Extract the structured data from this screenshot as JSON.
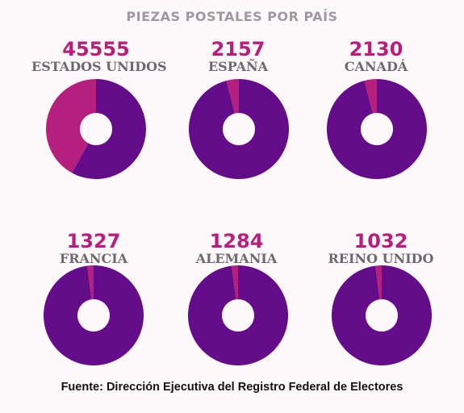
{
  "title": "PIEZAS POSTALES POR PAÍS",
  "source": "Fuente: Dirección Ejecutiva del Registro Federal de Electores",
  "colors": {
    "background": "#fdf9fa",
    "slice_main": "#650c8a",
    "slice_share": "#b51f7d",
    "number": "#b81f7d",
    "label": "#6c6a70"
  },
  "items": [
    {
      "value": "45555",
      "country": "ESTADOS UNIDOS"
    },
    {
      "value": "2157",
      "country": "ESPAÑA"
    },
    {
      "value": "2130",
      "country": "CANADÁ"
    },
    {
      "value": "1327",
      "country": "FRANCIA"
    },
    {
      "value": "1284",
      "country": "ALEMANIA"
    },
    {
      "value": "1032",
      "country": "REINO UNIDO"
    }
  ],
  "chart_data": {
    "type": "pie",
    "title": "PIEZAS POSTALES POR PAÍS",
    "categories": [
      "ESTADOS UNIDOS",
      "ESPAÑA",
      "CANADÁ",
      "FRANCIA",
      "ALEMANIA",
      "REINO UNIDO"
    ],
    "values": [
      45555,
      2157,
      2130,
      1327,
      1284,
      1032
    ],
    "highlight_fraction": [
      0.42,
      0.04,
      0.04,
      0.02,
      0.02,
      0.02
    ],
    "legend": "none"
  }
}
